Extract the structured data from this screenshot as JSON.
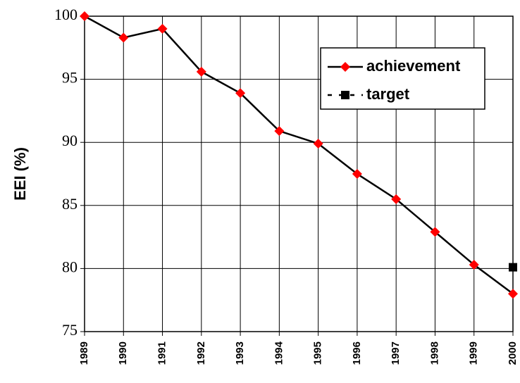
{
  "chart_data": {
    "type": "line",
    "ylabel": "EEI (%)",
    "categories": [
      "1989",
      "1990",
      "1991",
      "1992",
      "1993",
      "1994",
      "1995",
      "1996",
      "1997",
      "1998",
      "1999",
      "2000"
    ],
    "series": [
      {
        "name": "achievement",
        "color": "#ff0000",
        "line_color": "#000000",
        "marker": "diamond",
        "values": [
          100,
          98.3,
          99.0,
          95.6,
          93.9,
          90.9,
          89.9,
          87.5,
          85.5,
          82.9,
          80.3,
          78.0
        ]
      },
      {
        "name": "target",
        "color": "#000000",
        "marker": "square",
        "values": [
          null,
          null,
          null,
          null,
          null,
          null,
          null,
          null,
          null,
          null,
          null,
          80.1
        ]
      }
    ],
    "ylim": [
      75,
      100
    ],
    "yticks": [
      75,
      80,
      85,
      90,
      95,
      100
    ],
    "grid": true,
    "legend": "upper right"
  }
}
